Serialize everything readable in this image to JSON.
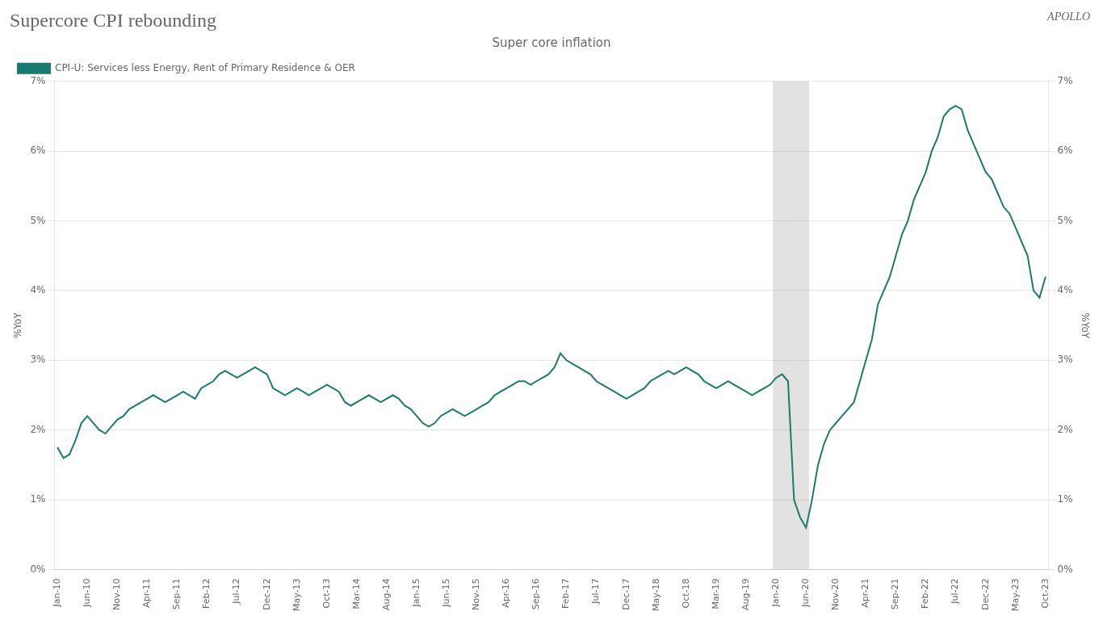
{
  "chart_data": {
    "type": "line",
    "title": "Supercore CPI rebounding",
    "subtitle": "Super core inflation",
    "watermark": "APOLLO",
    "ylabel": "%YoY",
    "y2label": "%YoY",
    "categories": [
      "Jan-10",
      null,
      null,
      null,
      null,
      "Jun-10",
      null,
      null,
      null,
      null,
      "Nov-10",
      null,
      null,
      null,
      null,
      "Apr-11",
      null,
      null,
      null,
      null,
      "Sep-11",
      null,
      null,
      null,
      null,
      "Feb-12",
      null,
      null,
      null,
      null,
      "Jul-12",
      null,
      null,
      null,
      null,
      "Dec-12",
      null,
      null,
      null,
      null,
      "May-13",
      null,
      null,
      null,
      null,
      "Oct-13",
      null,
      null,
      null,
      null,
      "Mar-14",
      null,
      null,
      null,
      null,
      "Aug-14",
      null,
      null,
      null,
      null,
      "Jan-15",
      null,
      null,
      null,
      null,
      "Jun-15",
      null,
      null,
      null,
      null,
      "Nov-15",
      null,
      null,
      null,
      null,
      "Apr-16",
      null,
      null,
      null,
      null,
      "Sep-16",
      null,
      null,
      null,
      null,
      "Feb-17",
      null,
      null,
      null,
      null,
      "Jul-17",
      null,
      null,
      null,
      null,
      "Dec-17",
      null,
      null,
      null,
      null,
      "May-18",
      null,
      null,
      null,
      null,
      "Oct-18",
      null,
      null,
      null,
      null,
      "Mar-19",
      null,
      null,
      null,
      null,
      "Aug-19",
      null,
      null,
      null,
      null,
      "Jan-20",
      null,
      null,
      null,
      null,
      "Jun-20",
      null,
      null,
      null,
      null,
      "Nov-20",
      null,
      null,
      null,
      null,
      "Apr-21",
      null,
      null,
      null,
      null,
      "Sep-21",
      null,
      null,
      null,
      null,
      "Feb-22",
      null,
      null,
      null,
      null,
      "Jul-22",
      null,
      null,
      null,
      null,
      "Dec-22",
      null,
      null,
      null,
      null,
      "May-23",
      null,
      null,
      null,
      null,
      "Oct-23"
    ],
    "series": [
      {
        "name": "CPI-U: Services less Energy, Rent of Primary Residence & OER",
        "color": "#1a7a6e",
        "values": [
          1.75,
          1.6,
          1.65,
          1.85,
          2.1,
          2.2,
          2.1,
          2.0,
          1.95,
          2.05,
          2.15,
          2.2,
          2.3,
          2.35,
          2.4,
          2.45,
          2.5,
          2.45,
          2.4,
          2.45,
          2.5,
          2.55,
          2.5,
          2.45,
          2.6,
          2.65,
          2.7,
          2.8,
          2.85,
          2.8,
          2.75,
          2.8,
          2.85,
          2.9,
          2.85,
          2.8,
          2.6,
          2.55,
          2.5,
          2.55,
          2.6,
          2.55,
          2.5,
          2.55,
          2.6,
          2.65,
          2.6,
          2.55,
          2.4,
          2.35,
          2.4,
          2.45,
          2.5,
          2.45,
          2.4,
          2.45,
          2.5,
          2.45,
          2.35,
          2.3,
          2.2,
          2.1,
          2.05,
          2.1,
          2.2,
          2.25,
          2.3,
          2.25,
          2.2,
          2.25,
          2.3,
          2.35,
          2.4,
          2.5,
          2.55,
          2.6,
          2.65,
          2.7,
          2.7,
          2.65,
          2.7,
          2.75,
          2.8,
          2.9,
          3.1,
          3.0,
          2.95,
          2.9,
          2.85,
          2.8,
          2.7,
          2.65,
          2.6,
          2.55,
          2.5,
          2.45,
          2.5,
          2.55,
          2.6,
          2.7,
          2.75,
          2.8,
          2.85,
          2.8,
          2.85,
          2.9,
          2.85,
          2.8,
          2.7,
          2.65,
          2.6,
          2.65,
          2.7,
          2.65,
          2.6,
          2.55,
          2.5,
          2.55,
          2.6,
          2.65,
          2.75,
          2.8,
          2.7,
          1.0,
          0.75,
          0.6,
          1.0,
          1.5,
          1.8,
          2.0,
          2.1,
          2.2,
          2.3,
          2.4,
          2.7,
          3.0,
          3.3,
          3.8,
          4.0,
          4.2,
          4.5,
          4.8,
          5.0,
          5.3,
          5.5,
          5.7,
          6.0,
          6.2,
          6.5,
          6.6,
          6.65,
          6.6,
          6.3,
          6.1,
          5.9,
          5.7,
          5.6,
          5.4,
          5.2,
          5.1,
          4.9,
          4.7,
          4.5,
          4.0,
          3.9,
          4.2
        ]
      }
    ],
    "ylim": [
      0,
      7
    ],
    "yticks": [
      {
        "value": 0,
        "label": "0%"
      },
      {
        "value": 1,
        "label": "1%"
      },
      {
        "value": 2,
        "label": "2%"
      },
      {
        "value": 3,
        "label": "3%"
      },
      {
        "value": 4,
        "label": "4%"
      },
      {
        "value": 5,
        "label": "5%"
      },
      {
        "value": 6,
        "label": "6%"
      },
      {
        "value": 7,
        "label": "7%"
      }
    ],
    "y2lim": [
      0,
      7
    ],
    "y2ticks": [
      {
        "value": 0,
        "label": "0%"
      },
      {
        "value": 1,
        "label": "1%"
      },
      {
        "value": 2,
        "label": "2%"
      },
      {
        "value": 3,
        "label": "3%"
      },
      {
        "value": 4,
        "label": "4%"
      },
      {
        "value": 5,
        "label": "5%"
      },
      {
        "value": 6,
        "label": "6%"
      },
      {
        "value": 7,
        "label": "7%"
      }
    ],
    "grid": true,
    "legend": "upper left",
    "shade": [
      "Jan-20",
      "Jun-20"
    ]
  }
}
